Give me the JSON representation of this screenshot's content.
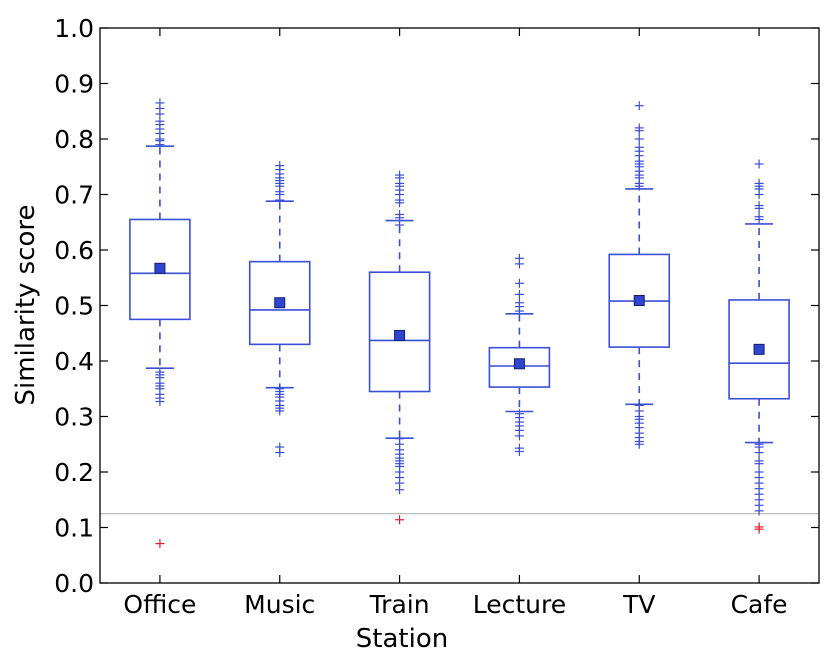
{
  "chart_data": {
    "type": "box",
    "title": "",
    "xlabel": "Station",
    "ylabel": "Similarity score",
    "ylim": [
      0.0,
      1.0
    ],
    "yticks": [
      0.0,
      0.1,
      0.2,
      0.3,
      0.4,
      0.5,
      0.6,
      0.7,
      0.8,
      0.9,
      1.0
    ],
    "ytick_labels": [
      "0.0",
      "0.1",
      "0.2",
      "0.3",
      "0.4",
      "0.5",
      "0.6",
      "0.7",
      "0.8",
      "0.9",
      "1.0"
    ],
    "categories": [
      "Office",
      "Music",
      "Train",
      "Lecture",
      "TV",
      "Cafe"
    ],
    "grid": false,
    "reference_line": {
      "y": 0.125,
      "color": "#bbbbbb"
    },
    "colors": {
      "box": "#3a4fd8",
      "mean_marker": "#2f45d0",
      "outlier_flier": "#3a4fd8",
      "low_outlier": "#e8192c"
    },
    "boxes": [
      {
        "category": "Office",
        "q1": 0.475,
        "median": 0.558,
        "q3": 0.655,
        "mean": 0.567,
        "whisker_low": 0.387,
        "whisker_high": 0.787,
        "fliers": [
          0.865,
          0.855,
          0.845,
          0.832,
          0.826,
          0.818,
          0.81,
          0.8,
          0.797,
          0.79,
          0.38,
          0.375,
          0.37,
          0.36,
          0.355,
          0.35,
          0.34,
          0.333,
          0.327
        ],
        "low_outliers": [
          0.071
        ]
      },
      {
        "category": "Music",
        "q1": 0.43,
        "median": 0.492,
        "q3": 0.579,
        "mean": 0.505,
        "whisker_low": 0.352,
        "whisker_high": 0.688,
        "fliers": [
          0.752,
          0.745,
          0.737,
          0.73,
          0.725,
          0.72,
          0.715,
          0.705,
          0.7,
          0.69,
          0.35,
          0.345,
          0.34,
          0.335,
          0.328,
          0.32,
          0.315,
          0.31,
          0.245,
          0.235
        ],
        "low_outliers": []
      },
      {
        "category": "Train",
        "q1": 0.345,
        "median": 0.437,
        "q3": 0.56,
        "mean": 0.446,
        "whisker_low": 0.261,
        "whisker_high": 0.653,
        "fliers": [
          0.735,
          0.73,
          0.72,
          0.715,
          0.708,
          0.7,
          0.69,
          0.685,
          0.664,
          0.658,
          0.645,
          0.26,
          0.25,
          0.24,
          0.232,
          0.225,
          0.22,
          0.215,
          0.21,
          0.2,
          0.19,
          0.18,
          0.168
        ],
        "low_outliers": [
          0.114
        ]
      },
      {
        "category": "Lecture",
        "q1": 0.353,
        "median": 0.391,
        "q3": 0.424,
        "mean": 0.395,
        "whisker_low": 0.309,
        "whisker_high": 0.485,
        "fliers": [
          0.585,
          0.575,
          0.54,
          0.52,
          0.505,
          0.498,
          0.49,
          0.305,
          0.298,
          0.29,
          0.283,
          0.275,
          0.265,
          0.243,
          0.237
        ],
        "low_outliers": []
      },
      {
        "category": "TV",
        "q1": 0.425,
        "median": 0.508,
        "q3": 0.592,
        "mean": 0.509,
        "whisker_low": 0.322,
        "whisker_high": 0.71,
        "fliers": [
          0.86,
          0.82,
          0.815,
          0.8,
          0.785,
          0.778,
          0.77,
          0.76,
          0.755,
          0.75,
          0.742,
          0.735,
          0.73,
          0.72,
          0.715,
          0.32,
          0.31,
          0.3,
          0.295,
          0.288,
          0.28,
          0.27,
          0.262,
          0.255,
          0.25
        ],
        "low_outliers": []
      },
      {
        "category": "Cafe",
        "q1": 0.332,
        "median": 0.396,
        "q3": 0.51,
        "mean": 0.421,
        "whisker_low": 0.253,
        "whisker_high": 0.647,
        "fliers": [
          0.755,
          0.72,
          0.715,
          0.71,
          0.7,
          0.68,
          0.675,
          0.66,
          0.655,
          0.25,
          0.245,
          0.235,
          0.22,
          0.215,
          0.2,
          0.19,
          0.18,
          0.17,
          0.16,
          0.15,
          0.14,
          0.13
        ],
        "low_outliers": [
          0.101,
          0.097
        ]
      }
    ]
  }
}
